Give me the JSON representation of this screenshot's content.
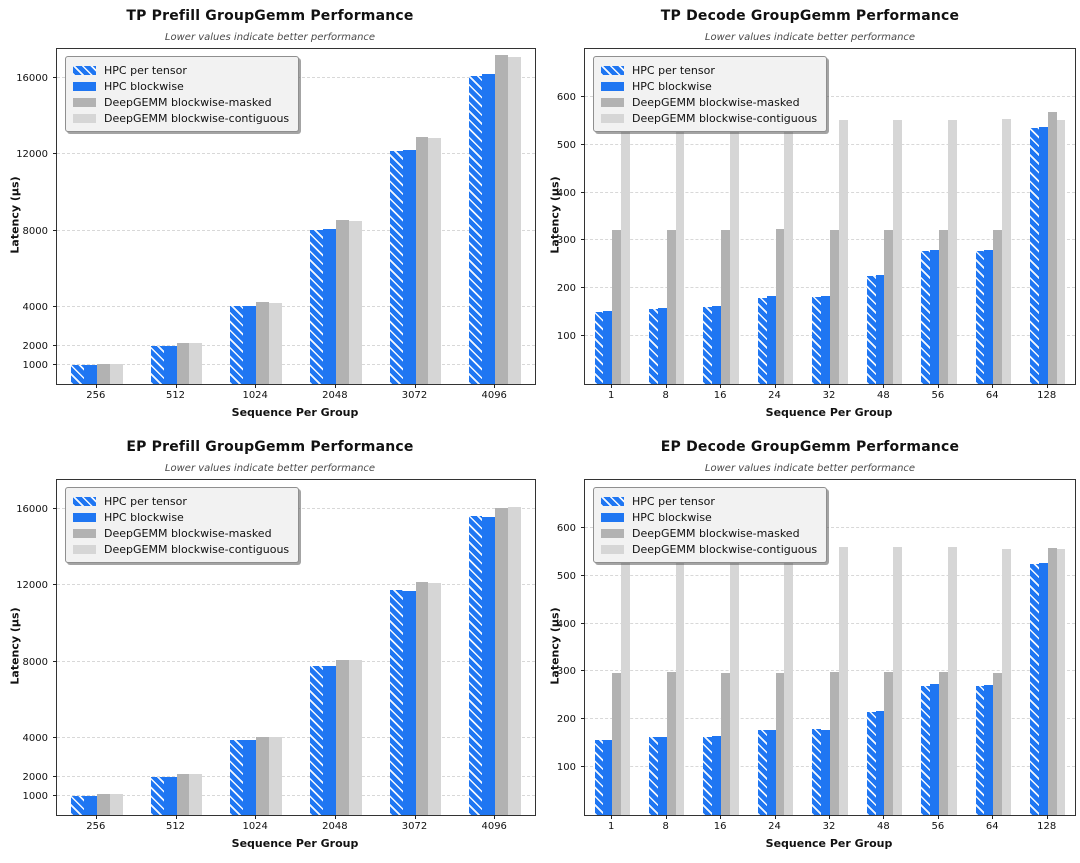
{
  "colors": {
    "hpc_blue": "#1f76f2",
    "deepgemm_masked_gray": "#b2b2b2",
    "deepgemm_contiguous_gray": "#d6d6d6",
    "gridline": "#d8d8d8",
    "frame": "#333333",
    "legend_bg": "#f2f2f2",
    "legend_border": "#8f8f8f",
    "subtitle_text": "#4a4a4a"
  },
  "chart_data": [
    {
      "type": "bar",
      "title": "TP Prefill GroupGemm Performance",
      "subtitle": "Lower values indicate better performance",
      "xlabel": "Sequence Per Group",
      "ylabel": "Latency (µs)",
      "categories": [
        "256",
        "512",
        "1024",
        "2048",
        "3072",
        "4096"
      ],
      "yticks": [
        1000,
        2000,
        4000,
        8000,
        12000,
        16000
      ],
      "ylim": [
        0,
        17500
      ],
      "grid": true,
      "legend_position": "upper-left",
      "series": [
        {
          "name": "HPC per tensor",
          "style": "hatched-blue",
          "values": [
            980,
            2000,
            4050,
            8050,
            12150,
            16100
          ]
        },
        {
          "name": "HPC blockwise",
          "style": "solid-blue",
          "values": [
            990,
            2010,
            4060,
            8100,
            12200,
            16200
          ]
        },
        {
          "name": "DeepGEMM blockwise-masked",
          "style": "gray",
          "values": [
            1060,
            2150,
            4300,
            8550,
            12900,
            17200
          ]
        },
        {
          "name": "DeepGEMM blockwise-contiguous",
          "style": "lightgray",
          "values": [
            1050,
            2130,
            4250,
            8500,
            12850,
            17100
          ]
        }
      ]
    },
    {
      "type": "bar",
      "title": "TP Decode GroupGemm Performance",
      "subtitle": "Lower values indicate better performance",
      "xlabel": "Sequence Per Group",
      "ylabel": "Latency (µs)",
      "categories": [
        "1",
        "8",
        "16",
        "24",
        "32",
        "48",
        "56",
        "64",
        "128"
      ],
      "yticks": [
        100,
        200,
        300,
        400,
        500,
        600
      ],
      "ylim": [
        0,
        700
      ],
      "grid": true,
      "legend_position": "upper-left",
      "series": [
        {
          "name": "HPC per tensor",
          "style": "hatched-blue",
          "values": [
            150,
            157,
            160,
            180,
            182,
            225,
            277,
            277,
            535
          ]
        },
        {
          "name": "HPC blockwise",
          "style": "solid-blue",
          "values": [
            152,
            158,
            162,
            183,
            184,
            227,
            279,
            280,
            537
          ]
        },
        {
          "name": "DeepGEMM blockwise-masked",
          "style": "gray",
          "values": [
            322,
            322,
            322,
            323,
            321,
            322,
            322,
            322,
            569
          ]
        },
        {
          "name": "DeepGEMM blockwise-contiguous",
          "style": "lightgray",
          "values": [
            552,
            551,
            551,
            551,
            551,
            552,
            552,
            553,
            552
          ]
        }
      ]
    },
    {
      "type": "bar",
      "title": "EP Prefill GroupGemm Performance",
      "subtitle": "Lower values indicate better performance",
      "xlabel": "Sequence Per Group",
      "ylabel": "Latency (µs)",
      "categories": [
        "256",
        "512",
        "1024",
        "2048",
        "3072",
        "4096"
      ],
      "yticks": [
        1000,
        2000,
        4000,
        8000,
        12000,
        16000
      ],
      "ylim": [
        0,
        17500
      ],
      "grid": true,
      "legend_position": "upper-left",
      "series": [
        {
          "name": "HPC per tensor",
          "style": "hatched-blue",
          "values": [
            980,
            1980,
            3920,
            7790,
            11750,
            15600
          ]
        },
        {
          "name": "HPC blockwise",
          "style": "solid-blue",
          "values": [
            980,
            1975,
            3930,
            7800,
            11700,
            15570
          ]
        },
        {
          "name": "DeepGEMM blockwise-masked",
          "style": "gray",
          "values": [
            1080,
            2150,
            4080,
            8100,
            12150,
            16050
          ]
        },
        {
          "name": "DeepGEMM blockwise-contiguous",
          "style": "lightgray",
          "values": [
            1075,
            2130,
            4060,
            8080,
            12100,
            16100
          ]
        }
      ]
    },
    {
      "type": "bar",
      "title": "EP Decode GroupGemm Performance",
      "subtitle": "Lower values indicate better performance",
      "xlabel": "Sequence Per Group",
      "ylabel": "Latency (µs)",
      "categories": [
        "1",
        "8",
        "16",
        "24",
        "32",
        "48",
        "56",
        "64",
        "128"
      ],
      "yticks": [
        100,
        200,
        300,
        400,
        500,
        600
      ],
      "ylim": [
        0,
        700
      ],
      "grid": true,
      "legend_position": "upper-left",
      "series": [
        {
          "name": "HPC per tensor",
          "style": "hatched-blue",
          "values": [
            157,
            162,
            164,
            177,
            180,
            215,
            270,
            270,
            525
          ]
        },
        {
          "name": "HPC blockwise",
          "style": "solid-blue",
          "values": [
            157,
            162,
            166,
            177,
            178,
            217,
            273,
            272,
            527
          ]
        },
        {
          "name": "DeepGEMM blockwise-masked",
          "style": "gray",
          "values": [
            297,
            299,
            296,
            297,
            299,
            299,
            298,
            296,
            558
          ]
        },
        {
          "name": "DeepGEMM blockwise-contiguous",
          "style": "lightgray",
          "values": [
            563,
            561,
            561,
            562,
            560,
            561,
            559,
            556,
            555
          ]
        }
      ]
    }
  ]
}
